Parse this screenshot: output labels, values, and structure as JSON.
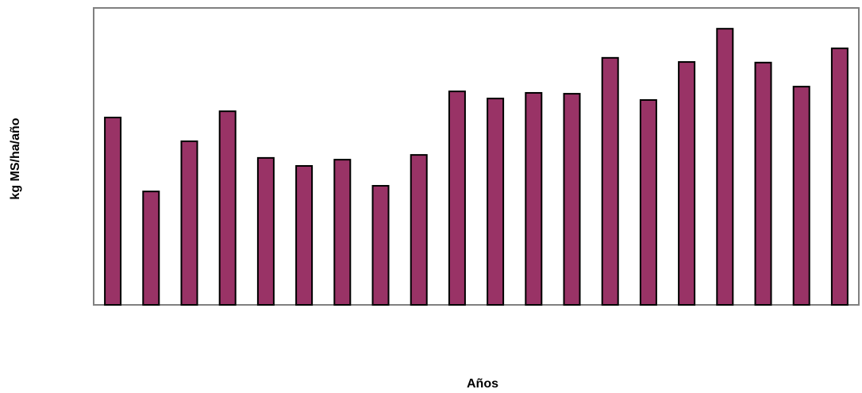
{
  "chart_data": {
    "type": "bar",
    "x_label": "Años",
    "y_label": "kg MS/ha/año",
    "categories": [
      null,
      null,
      null,
      null,
      null,
      null,
      null,
      null,
      null,
      null,
      null,
      null,
      null,
      null,
      null,
      null,
      null,
      null,
      null,
      null
    ],
    "values": [
      63.1,
      38.2,
      55.1,
      65.2,
      49.5,
      46.8,
      48.9,
      40.1,
      50.5,
      71.9,
      69.5,
      71.4,
      71.1,
      83.2,
      69.0,
      81.8,
      93.0,
      81.6,
      73.5,
      86.4
    ],
    "color": "#993366",
    "ylim": [
      0,
      100
    ]
  }
}
